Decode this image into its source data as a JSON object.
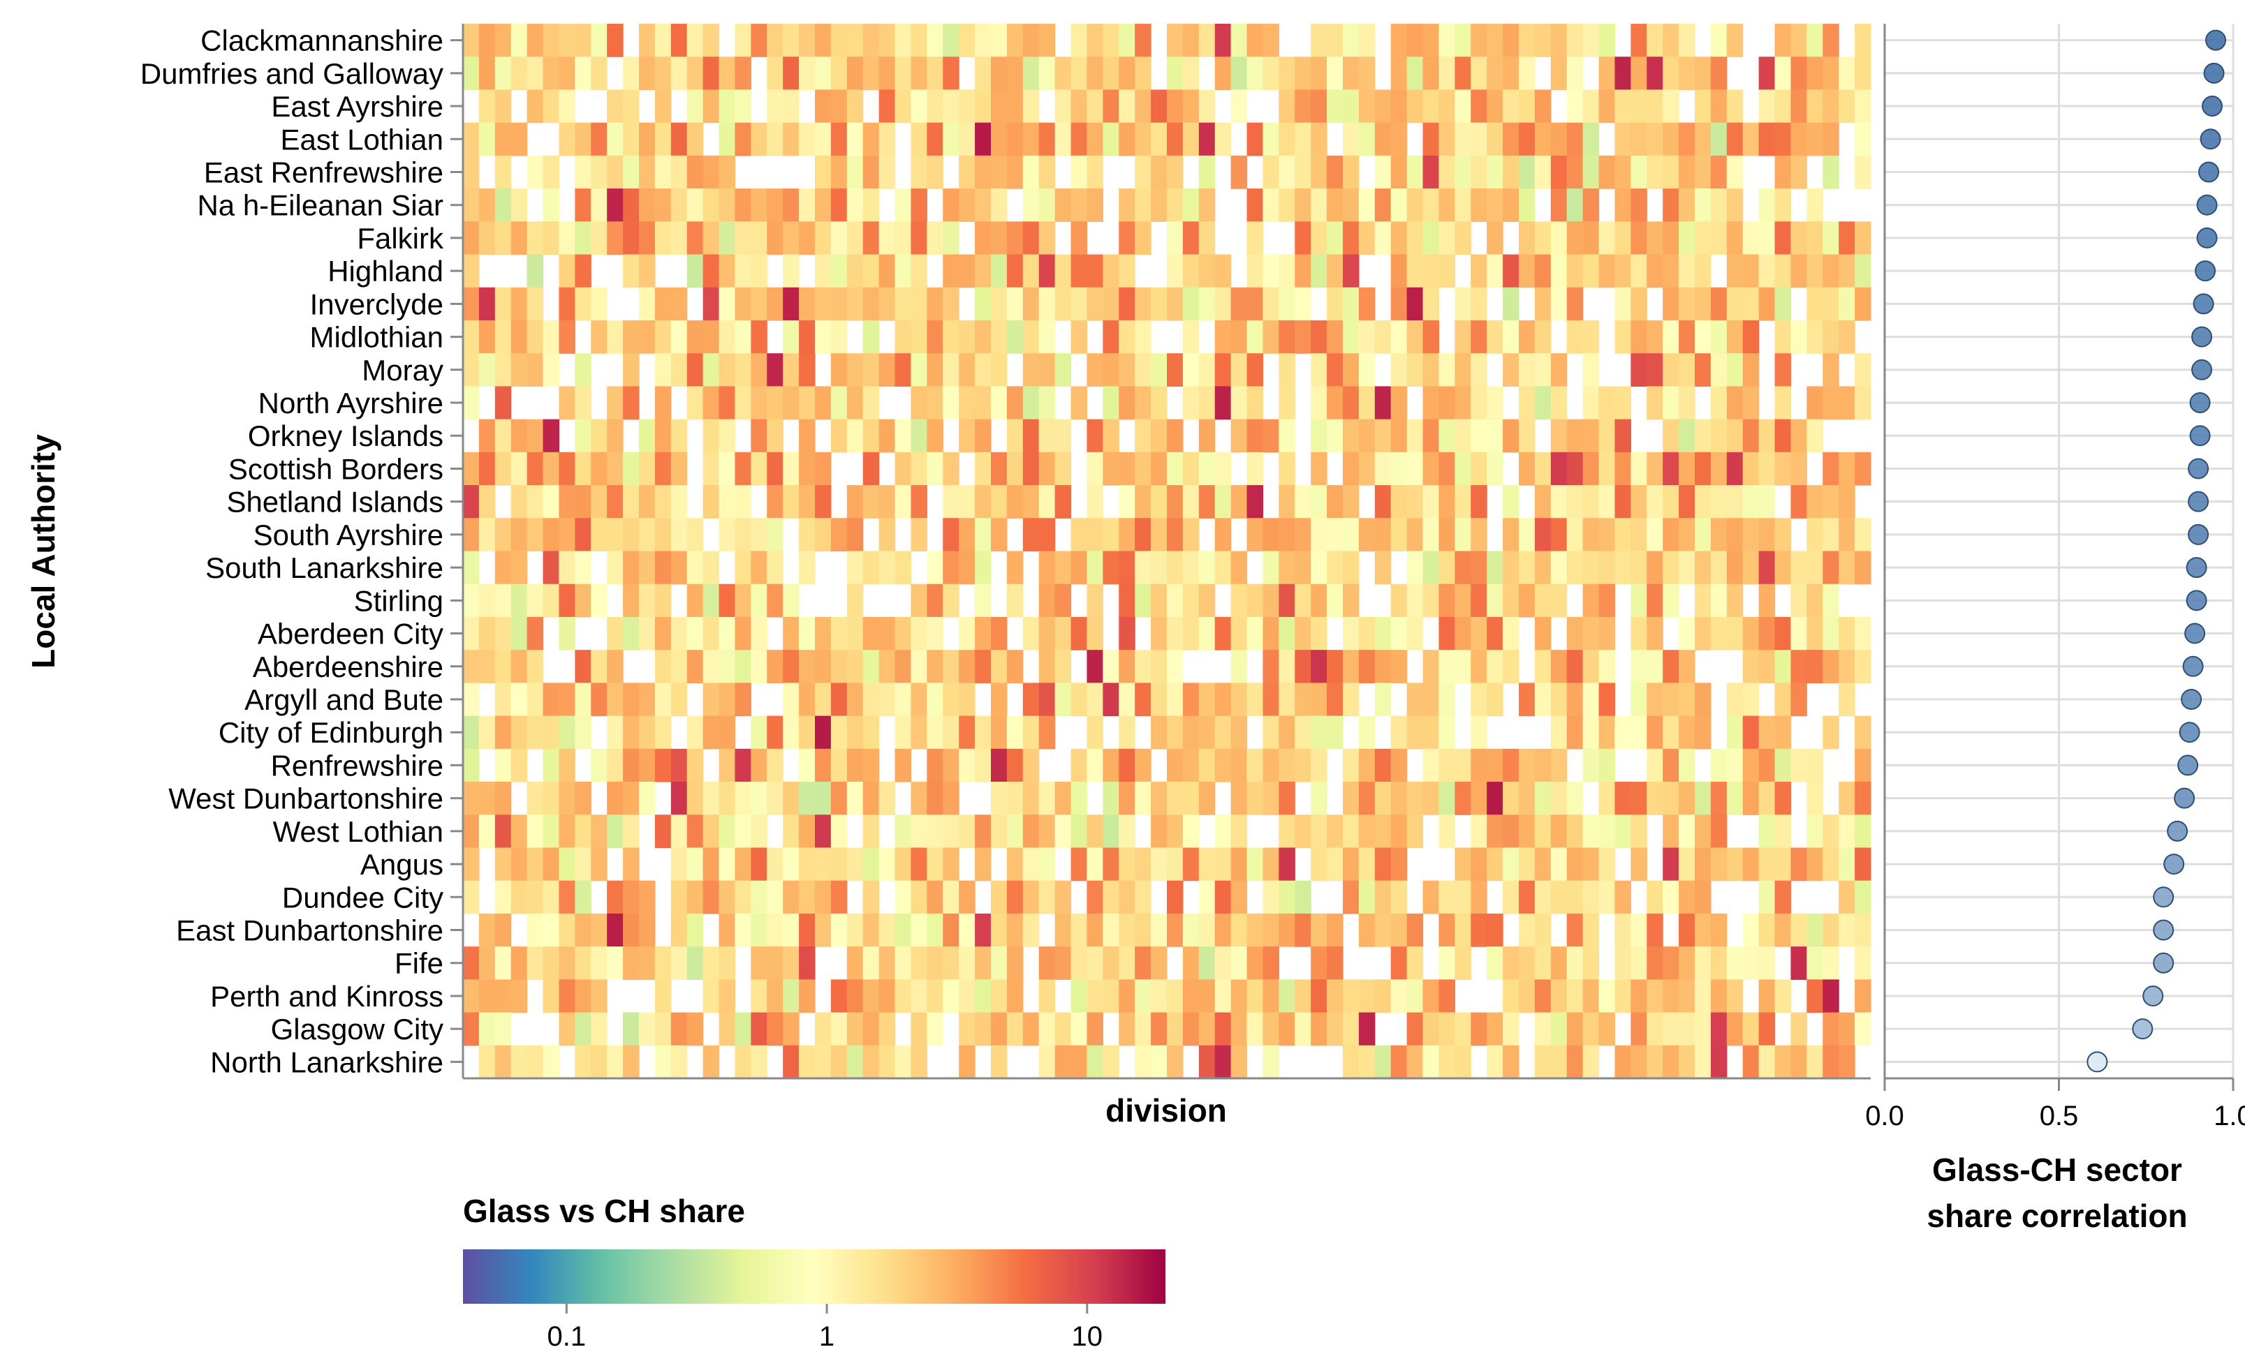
{
  "chart_data": [
    {
      "type": "heatmap",
      "title": "",
      "xlabel": "division",
      "ylabel": "Local Authority",
      "color_scale": "spectral (log)",
      "color_domain": [
        0.04,
        20
      ],
      "missing_color": "#ffffff",
      "legend": {
        "title": "Glass vs CH share",
        "ticks": [
          "0.1",
          "1",
          "10"
        ],
        "tick_values": [
          0.1,
          1,
          10
        ]
      },
      "rows": [
        "Clackmannanshire",
        "Dumfries and Galloway",
        "East Ayrshire",
        "East Lothian",
        "East Renfrewshire",
        "Na h-Eileanan Siar",
        "Falkirk",
        "Highland",
        "Inverclyde",
        "Midlothian",
        "Moray",
        "North Ayrshire",
        "Orkney Islands",
        "Scottish Borders",
        "Shetland Islands",
        "South Ayrshire",
        "South Lanarkshire",
        "Stirling",
        "Aberdeen City",
        "Aberdeenshire",
        "Argyll and Bute",
        "City of Edinburgh",
        "Renfrewshire",
        "West Dunbartonshire",
        "West Lothian",
        "Angus",
        "Dundee City",
        "East Dunbartonshire",
        "Fife",
        "Perth and Kinross",
        "Glasgow City",
        "North Lanarkshire"
      ],
      "n_columns": 88,
      "values_note": "Per-cell ratio values are not individually labelled; the generated grid approximates the depicted pattern (mostly 0.5-4, with sparse blank cells)."
    },
    {
      "type": "scatter",
      "title": "",
      "xlabel": "Glass-CH sector share correlation",
      "xlim": [
        0,
        1
      ],
      "x_ticks": [
        "0.0",
        "0.5",
        "1.0"
      ],
      "y_categories_from": "heatmap rows",
      "values": [
        0.95,
        0.945,
        0.94,
        0.935,
        0.93,
        0.925,
        0.925,
        0.92,
        0.915,
        0.91,
        0.91,
        0.905,
        0.905,
        0.9,
        0.9,
        0.9,
        0.895,
        0.895,
        0.89,
        0.885,
        0.88,
        0.875,
        0.87,
        0.86,
        0.84,
        0.83,
        0.8,
        0.8,
        0.8,
        0.77,
        0.74,
        0.61
      ]
    }
  ]
}
